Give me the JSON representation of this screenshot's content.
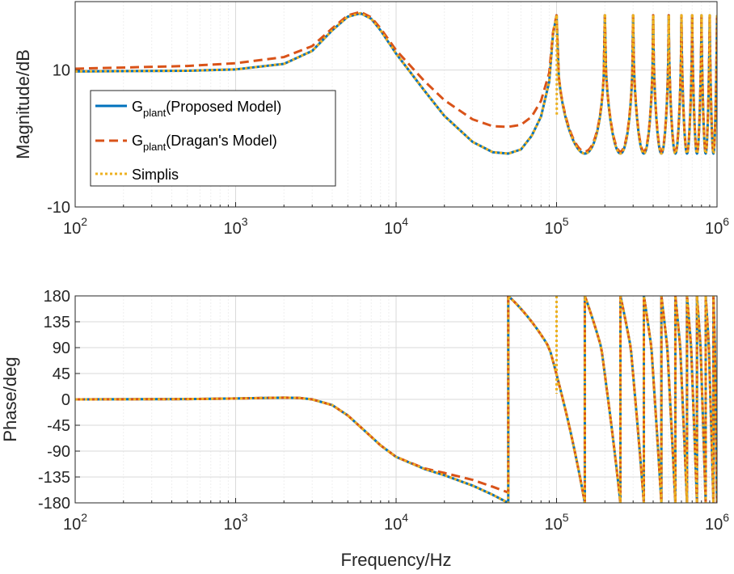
{
  "chart_data": [
    {
      "type": "line",
      "panel": "magnitude",
      "title": "",
      "xlabel": "",
      "ylabel": "Magnitude/dB",
      "xscale": "log",
      "xlim": [
        100,
        1000000
      ],
      "ylim": [
        -10,
        20
      ],
      "ytick_labels": [
        "-10",
        "10"
      ],
      "xtick_labels": [
        {
          "base": "10",
          "exp": "2"
        },
        {
          "base": "10",
          "exp": "3"
        },
        {
          "base": "10",
          "exp": "4"
        },
        {
          "base": "10",
          "exp": "5"
        },
        {
          "base": "10",
          "exp": "6"
        }
      ],
      "grid": true,
      "legend": {
        "placement": "middle-left",
        "entries": [
          {
            "prefix": "G",
            "sub": "plant",
            "suffix": "(Proposed Model)",
            "color": "#0072BD",
            "style": "solid"
          },
          {
            "prefix": "G",
            "sub": "plant",
            "suffix": "(Dragan's Model)",
            "color": "#D95319",
            "style": "dashed"
          },
          {
            "prefix": "",
            "sub": "",
            "suffix": "Simplis",
            "color": "#EDB120",
            "style": "dotted"
          }
        ]
      },
      "series": [
        {
          "name": "Gplant(Proposed Model)",
          "color": "#0072BD",
          "style": "solid",
          "x": [
            100,
            500,
            1000,
            2000,
            3000,
            4000,
            5000,
            6000,
            7000,
            8000,
            10000,
            15000,
            20000,
            30000,
            40000,
            50000,
            60000,
            70000,
            80000,
            90000,
            95000,
            100000
          ],
          "y": [
            9.8,
            9.9,
            10.1,
            10.9,
            12.8,
            15.8,
            17.8,
            18.3,
            17.5,
            15.8,
            12.4,
            7.0,
            3.3,
            -0.5,
            -2.0,
            -2.2,
            -1.6,
            0.4,
            3.2,
            8.3,
            15.2,
            18.0
          ]
        },
        {
          "name": "Gplant(Dragan's Model)",
          "color": "#D95319",
          "style": "dashed",
          "x": [
            100,
            500,
            1000,
            2000,
            3000,
            4000,
            5000,
            6000,
            7000,
            8000,
            10000,
            15000,
            20000,
            30000,
            40000,
            50000,
            60000,
            70000,
            80000,
            90000,
            95000,
            100000
          ],
          "y": [
            10.2,
            10.6,
            11.0,
            11.9,
            13.5,
            16.1,
            18.0,
            18.5,
            17.7,
            16.1,
            12.9,
            8.4,
            5.6,
            2.8,
            1.8,
            1.7,
            2.0,
            3.2,
            5.5,
            9.6,
            15.5,
            18.0
          ]
        },
        {
          "name": "Simplis",
          "color": "#EDB120",
          "style": "dotted",
          "x": [
            100,
            500,
            1000,
            2000,
            3000,
            4000,
            5000,
            6000,
            7000,
            8000,
            10000,
            15000,
            20000,
            30000,
            40000,
            50000,
            60000,
            70000,
            80000,
            90000,
            95000,
            100000
          ],
          "y": [
            9.8,
            9.9,
            10.1,
            10.9,
            12.8,
            15.8,
            17.8,
            18.3,
            17.5,
            15.8,
            12.4,
            7.0,
            3.3,
            -0.5,
            -2.0,
            -2.2,
            -1.6,
            0.4,
            3.2,
            8.3,
            15.2,
            18.0
          ]
        }
      ],
      "oscillation": {
        "note": "Above 100 kHz the three traces oscillate between about -2 dB and 18 dB at each resonance; Simplis adds narrow notches near each resonance",
        "resonance_hz": [
          100000,
          200000,
          300000,
          400000,
          500000,
          600000,
          700000,
          800000,
          900000,
          1000000
        ],
        "low_db": -2.2,
        "high_db": 18.0,
        "simplis_notch_db": [
          3.5,
          10.5,
          12.5,
          14.0,
          14.0,
          14.5,
          14.5,
          15.0,
          15.0,
          15.0
        ]
      }
    },
    {
      "type": "line",
      "panel": "phase",
      "title": "",
      "xlabel": "Frequency/Hz",
      "ylabel": "Phase/deg",
      "xscale": "log",
      "xlim": [
        100,
        1000000
      ],
      "ylim": [
        -180,
        180
      ],
      "ytick_labels": [
        "-180",
        "-135",
        "-90",
        "-45",
        "0",
        "45",
        "90",
        "135",
        "180"
      ],
      "xtick_labels": [
        {
          "base": "10",
          "exp": "2"
        },
        {
          "base": "10",
          "exp": "3"
        },
        {
          "base": "10",
          "exp": "4"
        },
        {
          "base": "10",
          "exp": "5"
        },
        {
          "base": "10",
          "exp": "6"
        }
      ],
      "grid": true,
      "series": [
        {
          "name": "Gplant(Proposed Model)",
          "color": "#0072BD",
          "style": "solid",
          "x": [
            100,
            500,
            1000,
            1500,
            2000,
            2500,
            3000,
            4000,
            5000,
            6000,
            7000,
            8000,
            10000,
            15000,
            20000,
            30000,
            40000,
            50000
          ],
          "y": [
            0,
            0.5,
            1.5,
            2.5,
            3,
            2.5,
            0,
            -10,
            -28,
            -48,
            -65,
            -80,
            -100,
            -121,
            -132,
            -150,
            -166,
            -180
          ]
        },
        {
          "name": "Gplant(Dragan's Model)",
          "color": "#D95319",
          "style": "dashed",
          "x": [
            100,
            500,
            1000,
            1500,
            2000,
            2500,
            3000,
            4000,
            5000,
            6000,
            7000,
            8000,
            10000,
            15000,
            20000,
            30000,
            40000,
            50000
          ],
          "y": [
            0,
            0.5,
            1.5,
            2.5,
            3,
            2.5,
            0,
            -10,
            -28,
            -48,
            -65,
            -80,
            -100,
            -120,
            -128,
            -140,
            -152,
            -162
          ]
        },
        {
          "name": "Simplis",
          "color": "#EDB120",
          "style": "dotted",
          "x": [
            100,
            500,
            1000,
            1500,
            2000,
            2500,
            3000,
            4000,
            5000,
            6000,
            7000,
            8000,
            10000,
            15000,
            20000,
            30000,
            40000,
            50000
          ],
          "y": [
            0,
            0.5,
            1.5,
            2.5,
            3,
            2.5,
            0,
            -10,
            -28,
            -48,
            -65,
            -80,
            -100,
            -121,
            -132,
            -150,
            -166,
            -180
          ]
        }
      ],
      "oscillation": {
        "note": "From 50 kHz upward the phase wraps: it jumps to +180 deg at each anti-resonance and falls back to -180 deg; Simplis shows an extra spike at 100 kHz",
        "wrap_hz": [
          50000,
          150000,
          250000,
          350000,
          450000,
          550000,
          650000,
          750000,
          850000,
          950000
        ],
        "simplis_spike_hz": 100000
      }
    }
  ]
}
